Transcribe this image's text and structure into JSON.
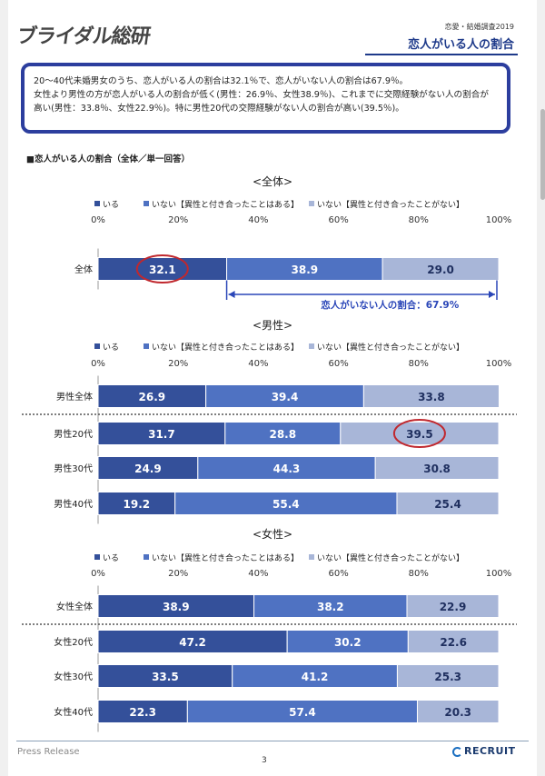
{
  "header": {
    "brand": "ブライダル総研",
    "survey": "恋愛・結婚調査2019",
    "title": "恋人がいる人の割合"
  },
  "summary": [
    "20～40代未婚男女のうち、恋人がいる人の割合は32.1％で、恋人がいない人の割合は67.9％。",
    "女性より男性の方が恋人がいる人の割合が低く(男性：26.9％、女性38.9％)、これまでに交際経験がない人の割合が",
    "高い(男性：33.8％、女性22.9％)。特に男性20代の交際経験がない人の割合が高い(39.5％)。",
    ""
  ],
  "section_label": "■恋人がいる人の割合（全体／単一回答）",
  "colors": {
    "dark": "#34509a",
    "mid": "#4f72c2",
    "light": "#a8b6d8",
    "annot": "#2a46b8",
    "circle": "#c0282e"
  },
  "legend_labels": [
    "いる",
    "いない【異性と付き合ったことはある】",
    "いない【異性と付き合ったことがない】"
  ],
  "ticks": [
    "0%",
    "20%",
    "40%",
    "60%",
    "80%",
    "100%"
  ],
  "chart_data": [
    {
      "type": "bar",
      "stacked": true,
      "orientation": "horizontal",
      "title": "<全体>",
      "categories": [
        "全体"
      ],
      "series": [
        {
          "name": "いる",
          "values": [
            32.1
          ]
        },
        {
          "name": "いない【異性と付き合ったことはある】",
          "values": [
            38.9
          ]
        },
        {
          "name": "いない【異性と付き合ったことがない】",
          "values": [
            29.0
          ]
        }
      ],
      "value_labels": [
        [
          "32.1",
          "38.9",
          "29.0"
        ]
      ],
      "xlim": [
        0,
        100
      ],
      "legend": "top",
      "annotation": {
        "text": "恋人がいない人の割合：67.9%",
        "from": 32.1,
        "to": 100
      },
      "circled": [
        [
          0,
          0
        ]
      ]
    },
    {
      "type": "bar",
      "stacked": true,
      "orientation": "horizontal",
      "title": "<男性>",
      "categories": [
        "男性全体",
        "男性20代",
        "男性30代",
        "男性40代"
      ],
      "series": [
        {
          "name": "いる",
          "values": [
            26.9,
            31.7,
            24.9,
            19.2
          ]
        },
        {
          "name": "いない【異性と付き合ったことはある】",
          "values": [
            39.4,
            28.8,
            44.3,
            55.4
          ]
        },
        {
          "name": "いない【異性と付き合ったことがない】",
          "values": [
            33.8,
            39.5,
            30.8,
            25.4
          ]
        }
      ],
      "xlim": [
        0,
        100
      ],
      "legend": "top",
      "circled": [
        [
          1,
          2
        ]
      ]
    },
    {
      "type": "bar",
      "stacked": true,
      "orientation": "horizontal",
      "title": "<女性>",
      "categories": [
        "女性全体",
        "女性20代",
        "女性30代",
        "女性40代"
      ],
      "series": [
        {
          "name": "いる",
          "values": [
            38.9,
            47.2,
            33.5,
            22.3
          ]
        },
        {
          "name": "いない【異性と付き合ったことはある】",
          "values": [
            38.2,
            30.2,
            41.2,
            57.4
          ]
        },
        {
          "name": "いない【異性と付き合ったことがない】",
          "values": [
            22.9,
            22.6,
            25.3,
            20.3
          ]
        }
      ],
      "xlim": [
        0,
        100
      ],
      "legend": "top",
      "circled": []
    }
  ],
  "footer": {
    "press": "Press Release",
    "page": "3",
    "logo": "RECRUIT"
  }
}
